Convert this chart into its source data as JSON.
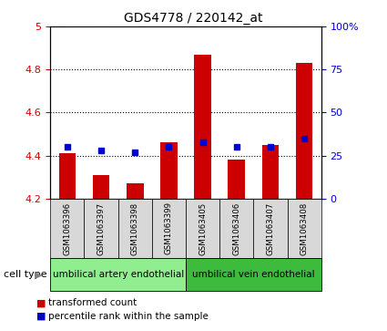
{
  "title": "GDS4778 / 220142_at",
  "samples": [
    "GSM1063396",
    "GSM1063397",
    "GSM1063398",
    "GSM1063399",
    "GSM1063405",
    "GSM1063406",
    "GSM1063407",
    "GSM1063408"
  ],
  "red_values": [
    4.41,
    4.31,
    4.27,
    4.46,
    4.87,
    4.38,
    4.45,
    4.83
  ],
  "blue_pct": [
    30,
    28,
    27,
    30,
    33,
    30,
    30,
    35
  ],
  "ylim_left": [
    4.2,
    5.0
  ],
  "ylim_right": [
    0,
    100
  ],
  "yticks_left": [
    4.2,
    4.4,
    4.6,
    4.8,
    5.0
  ],
  "ytick_labels_left": [
    "4.2",
    "4.4",
    "4.6",
    "4.8",
    "5"
  ],
  "yticks_right": [
    0,
    25,
    50,
    75,
    100
  ],
  "ytick_labels_right": [
    "0",
    "25",
    "50",
    "75",
    "100%"
  ],
  "group1_label": "umbilical artery endothelial",
  "group2_label": "umbilical vein endothelial",
  "group1_color": "#90EE90",
  "group2_color": "#3CBB3C",
  "bar_bottom": 4.2,
  "red_color": "#CC0000",
  "blue_color": "#0000CC",
  "legend_red": "transformed count",
  "legend_blue": "percentile rank within the sample",
  "cell_type_label": "cell type",
  "bg_color": "#D8D8D8"
}
